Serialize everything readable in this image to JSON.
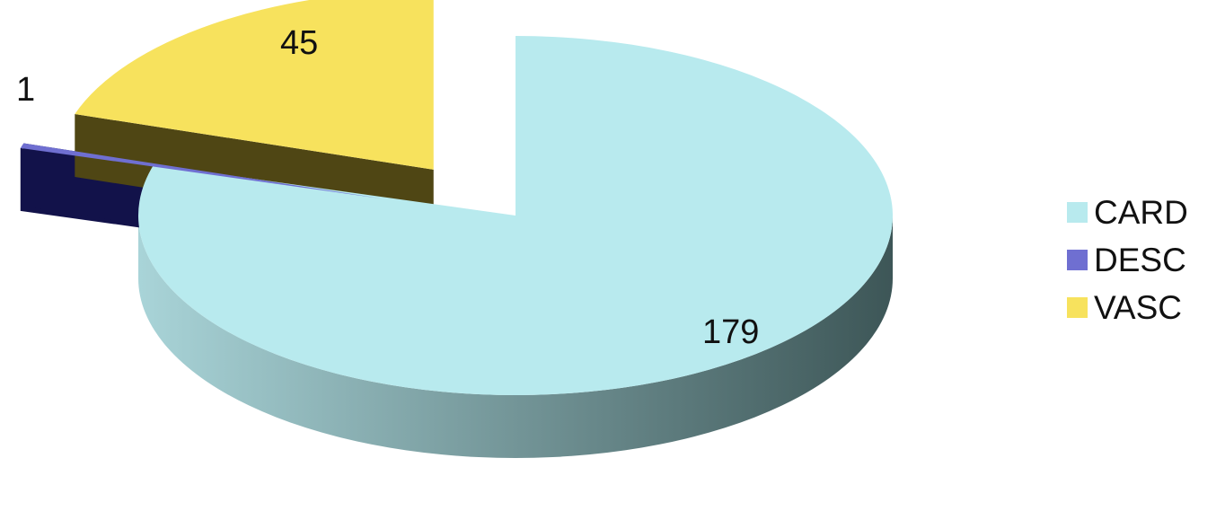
{
  "chart_data": {
    "type": "pie",
    "style": "3d-exploded",
    "title": "",
    "legend_position": "right",
    "slices": [
      {
        "label": "CARD",
        "value": 179,
        "data_label": "179",
        "color": "#b8eaee",
        "side_light": "#a9d4d8",
        "side_dark": "#3d5657",
        "exploded": false
      },
      {
        "label": "DESC",
        "value": 1,
        "data_label": "1",
        "color": "#6f6fd1",
        "side_light": "#3b3b6a",
        "side_dark": "#12124a",
        "exploded": true
      },
      {
        "label": "VASC",
        "value": 45,
        "data_label": "45",
        "color": "#f7e25d",
        "side_light": "#7a6e2a",
        "side_dark": "#4f4614",
        "exploded": true
      }
    ]
  }
}
